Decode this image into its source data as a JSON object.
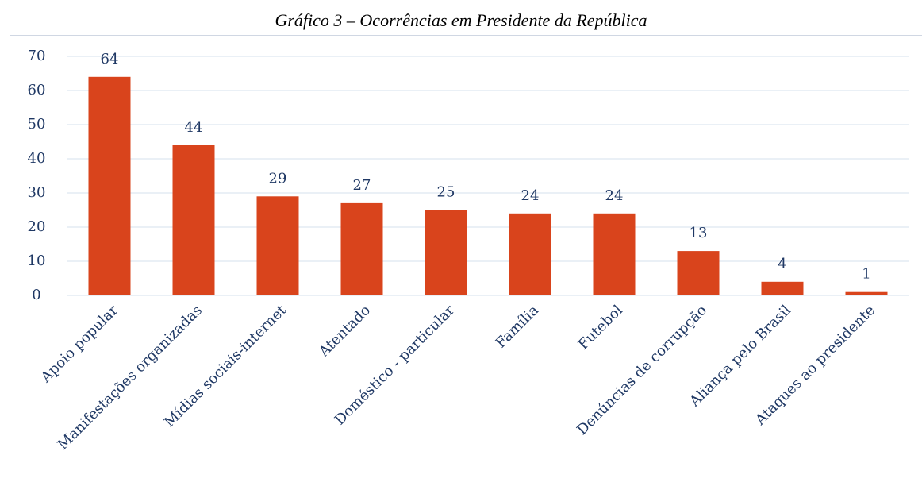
{
  "chart_data": {
    "type": "bar",
    "title": "Gráfico 3 – Ocorrências em Presidente da República",
    "categories": [
      "Apoio popular",
      "Manifestações organizadas",
      "Mídias sociais-internet",
      "Atentado",
      "Doméstico - particular",
      "Família",
      "Futebol",
      "Denúncias de corrupção",
      "Aliança pelo Brasil",
      "Ataques ao presidente"
    ],
    "values": [
      64,
      44,
      29,
      27,
      25,
      24,
      24,
      13,
      4,
      1
    ],
    "color": "#d9441c",
    "ylim": [
      0,
      70
    ],
    "yticks": [
      0,
      10,
      20,
      30,
      40,
      50,
      60,
      70
    ],
    "grid": true
  }
}
